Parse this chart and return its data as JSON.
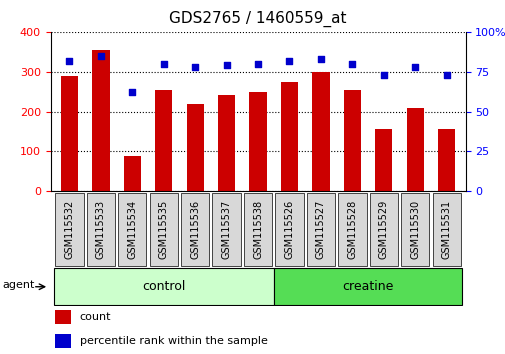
{
  "title": "GDS2765 / 1460559_at",
  "samples": [
    "GSM115532",
    "GSM115533",
    "GSM115534",
    "GSM115535",
    "GSM115536",
    "GSM115537",
    "GSM115538",
    "GSM115526",
    "GSM115527",
    "GSM115528",
    "GSM115529",
    "GSM115530",
    "GSM115531"
  ],
  "counts": [
    288,
    355,
    88,
    255,
    220,
    242,
    250,
    275,
    298,
    255,
    155,
    210,
    155
  ],
  "percentiles": [
    82,
    85,
    62,
    80,
    78,
    79,
    80,
    82,
    83,
    80,
    73,
    78,
    73
  ],
  "bar_color": "#cc0000",
  "dot_color": "#0000cc",
  "ylim_left": [
    0,
    400
  ],
  "ylim_right": [
    0,
    100
  ],
  "yticks_left": [
    0,
    100,
    200,
    300,
    400
  ],
  "yticks_right": [
    0,
    25,
    50,
    75,
    100
  ],
  "groups": [
    {
      "label": "control",
      "start": 0,
      "end": 7,
      "color": "#ccffcc"
    },
    {
      "label": "creatine",
      "start": 7,
      "end": 13,
      "color": "#55dd55"
    }
  ],
  "agent_label": "agent",
  "legend_count_label": "count",
  "legend_percentile_label": "percentile rank within the sample",
  "title_fontsize": 11,
  "tick_label_fontsize": 8,
  "sample_label_fontsize": 7,
  "group_label_fontsize": 9,
  "legend_fontsize": 8,
  "bg_color": "#d8d8d8"
}
